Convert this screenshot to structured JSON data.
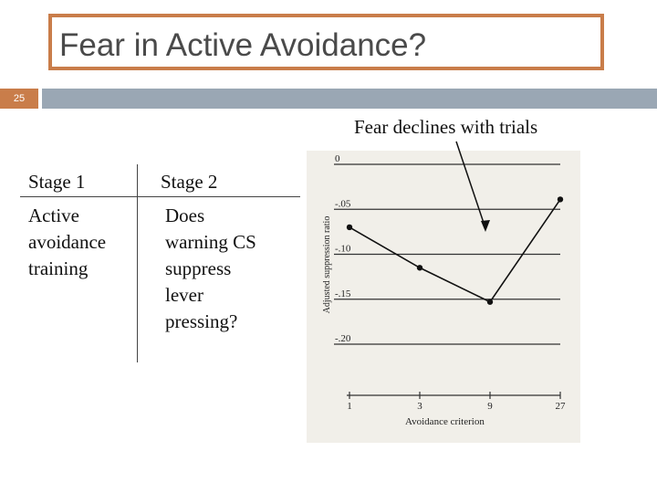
{
  "slide": {
    "title": "Fear in Active Avoidance?",
    "number": "25",
    "annotation": "Fear declines with trials"
  },
  "table": {
    "headers": [
      "Stage 1",
      "Stage 2"
    ],
    "stage1_cell": [
      "Active",
      "avoidance",
      "training"
    ],
    "stage2_cell": [
      "Does",
      "warning CS",
      "suppress",
      "lever",
      "pressing?"
    ]
  },
  "colors": {
    "accent": "#c97d4a",
    "bar": "#9aa7b4"
  },
  "chart_data": {
    "type": "line",
    "xlabel": "Avoidance criterion",
    "ylabel": "Adjusted suppression ratio",
    "x_ticks": [
      "1",
      "3",
      "9",
      "27"
    ],
    "y_ticks": [
      "0",
      "-.05",
      "-.10",
      "-.15",
      "-.20"
    ],
    "ylim": [
      -0.2,
      0
    ],
    "points": [
      {
        "x": 1,
        "y": -0.07
      },
      {
        "x": 3,
        "y": -0.115
      },
      {
        "x": 9,
        "y": -0.153
      },
      {
        "x": 27,
        "y": -0.039
      }
    ]
  }
}
